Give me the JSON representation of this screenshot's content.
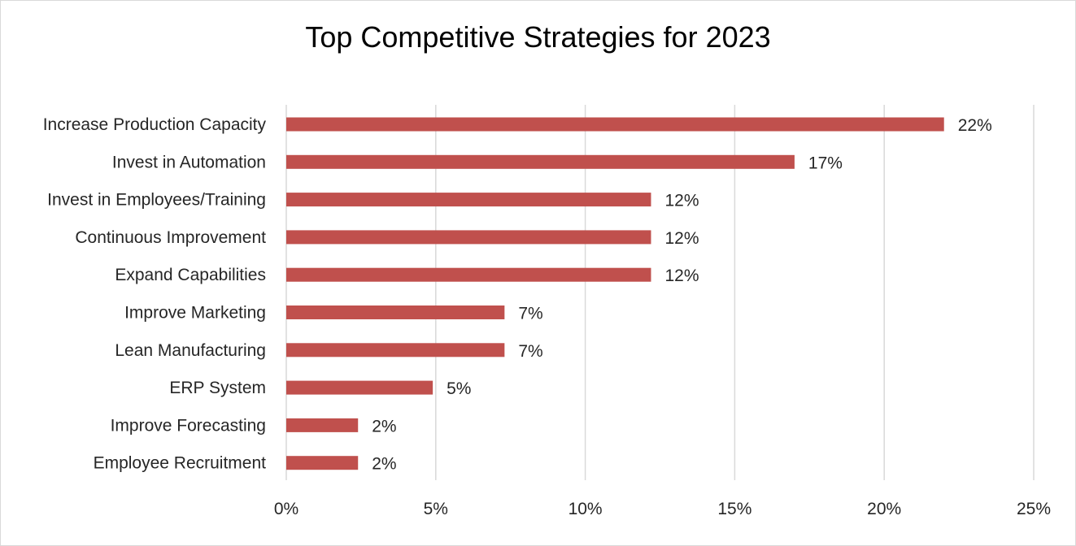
{
  "chart_data": {
    "type": "bar",
    "orientation": "horizontal",
    "title": "Top Competitive Strategies for 2023",
    "xlabel": "",
    "ylabel": "",
    "categories": [
      "Increase Production Capacity",
      "Invest in Automation",
      "Invest in Employees/Training",
      "Continuous Improvement",
      "Expand Capabilities",
      "Improve Marketing",
      "Lean Manufacturing",
      "ERP System",
      "Improve Forecasting",
      "Employee Recruitment"
    ],
    "values": [
      22,
      17,
      12.2,
      12.2,
      12.2,
      7.3,
      7.3,
      4.9,
      2.4,
      2.4
    ],
    "data_labels": [
      "22%",
      "17%",
      "12%",
      "12%",
      "12%",
      "7%",
      "7%",
      "5%",
      "2%",
      "2%"
    ],
    "xlim": [
      0,
      25
    ],
    "xticks": [
      0,
      5,
      10,
      15,
      20,
      25
    ],
    "xtick_labels": [
      "0%",
      "5%",
      "10%",
      "15%",
      "20%",
      "25%"
    ],
    "grid": "vertical",
    "legend": "none",
    "bar_color": "#c0504d"
  }
}
